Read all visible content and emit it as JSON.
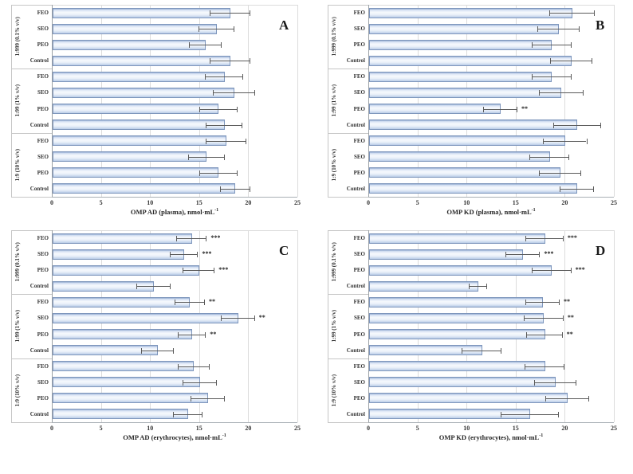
{
  "figure": {
    "background": "#ffffff"
  },
  "colors": {
    "bar_fill_light": "#f6f9fd",
    "bar_fill_dark": "#93abd0",
    "bar_border": "#7e96bc",
    "error_bar": "#5a5a5a",
    "gridline": "#dcdcdc",
    "axis_line": "#aab0b6",
    "text": "#333333"
  },
  "chart_data": [
    {
      "type": "bar",
      "orientation": "horizontal",
      "panel_letter": "A",
      "xlabel_base": "OMP AD (plasma), nmol·mL",
      "xlabel_sup": "-1",
      "xlim": [
        0,
        25
      ],
      "xticks": [
        0,
        5,
        10,
        15,
        20,
        25
      ],
      "grid": true,
      "groups": [
        {
          "label": "1:999 (0.1% v/v)",
          "bars": [
            {
              "category": "FEO",
              "value": 18.1,
              "error": 2.0,
              "sig": ""
            },
            {
              "category": "SEO",
              "value": 16.7,
              "error": 1.8,
              "sig": ""
            },
            {
              "category": "PEO",
              "value": 15.6,
              "error": 1.6,
              "sig": ""
            },
            {
              "category": "Control",
              "value": 18.1,
              "error": 2.0,
              "sig": ""
            }
          ]
        },
        {
          "label": "1:99 (1% v/v)",
          "bars": [
            {
              "category": "FEO",
              "value": 17.5,
              "error": 1.9,
              "sig": ""
            },
            {
              "category": "SEO",
              "value": 18.5,
              "error": 2.1,
              "sig": ""
            },
            {
              "category": "PEO",
              "value": 16.9,
              "error": 1.9,
              "sig": ""
            },
            {
              "category": "Control",
              "value": 17.5,
              "error": 1.8,
              "sig": ""
            }
          ]
        },
        {
          "label": "1:9 (10% v/v)",
          "bars": [
            {
              "category": "FEO",
              "value": 17.7,
              "error": 2.0,
              "sig": ""
            },
            {
              "category": "SEO",
              "value": 15.7,
              "error": 1.8,
              "sig": ""
            },
            {
              "category": "PEO",
              "value": 16.9,
              "error": 1.9,
              "sig": ""
            },
            {
              "category": "Control",
              "value": 18.6,
              "error": 1.5,
              "sig": ""
            }
          ]
        }
      ]
    },
    {
      "type": "bar",
      "orientation": "horizontal",
      "panel_letter": "B",
      "xlabel_base": "OMP KD (plasma), nmol·mL",
      "xlabel_sup": "-1",
      "xlim": [
        0,
        25
      ],
      "xticks": [
        0,
        5,
        10,
        15,
        20,
        25
      ],
      "grid": true,
      "groups": [
        {
          "label": "1:999 (0.1% v/v)",
          "bars": [
            {
              "category": "FEO",
              "value": 20.7,
              "error": 2.3,
              "sig": ""
            },
            {
              "category": "SEO",
              "value": 19.3,
              "error": 2.1,
              "sig": ""
            },
            {
              "category": "PEO",
              "value": 18.6,
              "error": 2.0,
              "sig": ""
            },
            {
              "category": "Control",
              "value": 20.6,
              "error": 2.1,
              "sig": ""
            }
          ]
        },
        {
          "label": "1:99 (1% v/v)",
          "bars": [
            {
              "category": "FEO",
              "value": 18.6,
              "error": 2.0,
              "sig": ""
            },
            {
              "category": "SEO",
              "value": 19.6,
              "error": 2.2,
              "sig": ""
            },
            {
              "category": "PEO",
              "value": 13.4,
              "error": 1.7,
              "sig": "**"
            },
            {
              "category": "Control",
              "value": 21.2,
              "error": 2.4,
              "sig": ""
            }
          ]
        },
        {
          "label": "1:9 (10% v/v)",
          "bars": [
            {
              "category": "FEO",
              "value": 20.0,
              "error": 2.2,
              "sig": ""
            },
            {
              "category": "SEO",
              "value": 18.4,
              "error": 2.0,
              "sig": ""
            },
            {
              "category": "PEO",
              "value": 19.5,
              "error": 2.1,
              "sig": ""
            },
            {
              "category": "Control",
              "value": 21.2,
              "error": 1.7,
              "sig": ""
            }
          ]
        }
      ]
    },
    {
      "type": "bar",
      "orientation": "horizontal",
      "panel_letter": "C",
      "xlabel_base": "OMP AD (erythrocytes), nmol·mL",
      "xlabel_sup": "-1",
      "xlim": [
        0,
        25
      ],
      "xticks": [
        0,
        5,
        10,
        15,
        20,
        25
      ],
      "grid": true,
      "groups": [
        {
          "label": "1:999 (0.1% v/v)",
          "bars": [
            {
              "category": "FEO",
              "value": 14.2,
              "error": 1.5,
              "sig": "***"
            },
            {
              "category": "SEO",
              "value": 13.4,
              "error": 1.4,
              "sig": "***"
            },
            {
              "category": "PEO",
              "value": 14.9,
              "error": 1.6,
              "sig": "***"
            },
            {
              "category": "Control",
              "value": 10.3,
              "error": 1.7,
              "sig": ""
            }
          ]
        },
        {
          "label": "1:99 (1% v/v)",
          "bars": [
            {
              "category": "FEO",
              "value": 14.0,
              "error": 1.5,
              "sig": "**"
            },
            {
              "category": "SEO",
              "value": 18.9,
              "error": 1.7,
              "sig": "**"
            },
            {
              "category": "PEO",
              "value": 14.2,
              "error": 1.4,
              "sig": "**"
            },
            {
              "category": "Control",
              "value": 10.7,
              "error": 1.6,
              "sig": ""
            }
          ]
        },
        {
          "label": "1:9 (10% v/v)",
          "bars": [
            {
              "category": "FEO",
              "value": 14.4,
              "error": 1.6,
              "sig": ""
            },
            {
              "category": "SEO",
              "value": 15.0,
              "error": 1.7,
              "sig": ""
            },
            {
              "category": "PEO",
              "value": 15.8,
              "error": 1.7,
              "sig": ""
            },
            {
              "category": "Control",
              "value": 13.8,
              "error": 1.5,
              "sig": ""
            }
          ]
        }
      ]
    },
    {
      "type": "bar",
      "orientation": "horizontal",
      "panel_letter": "D",
      "xlabel_base": "OMP KD (erythrocytes), nmol·mL",
      "xlabel_sup": "-1",
      "xlim": [
        0,
        25
      ],
      "xticks": [
        0,
        5,
        10,
        15,
        20,
        25
      ],
      "grid": true,
      "groups": [
        {
          "label": "1:999 (0.1% v/v)",
          "bars": [
            {
              "category": "FEO",
              "value": 17.9,
              "error": 1.9,
              "sig": "***"
            },
            {
              "category": "SEO",
              "value": 15.7,
              "error": 1.7,
              "sig": "***"
            },
            {
              "category": "PEO",
              "value": 18.6,
              "error": 2.0,
              "sig": "***"
            },
            {
              "category": "Control",
              "value": 11.1,
              "error": 0.9,
              "sig": ""
            }
          ]
        },
        {
          "label": "1:99 (1% v/v)",
          "bars": [
            {
              "category": "FEO",
              "value": 17.7,
              "error": 1.7,
              "sig": "**"
            },
            {
              "category": "SEO",
              "value": 17.8,
              "error": 2.0,
              "sig": "**"
            },
            {
              "category": "PEO",
              "value": 17.9,
              "error": 1.8,
              "sig": "**"
            },
            {
              "category": "Control",
              "value": 11.5,
              "error": 2.0,
              "sig": ""
            }
          ]
        },
        {
          "label": "1:9 (10% v/v)",
          "bars": [
            {
              "category": "FEO",
              "value": 17.9,
              "error": 2.0,
              "sig": ""
            },
            {
              "category": "SEO",
              "value": 19.0,
              "error": 2.1,
              "sig": ""
            },
            {
              "category": "PEO",
              "value": 20.2,
              "error": 2.2,
              "sig": ""
            },
            {
              "category": "Control",
              "value": 16.4,
              "error": 2.9,
              "sig": ""
            }
          ]
        }
      ]
    }
  ]
}
